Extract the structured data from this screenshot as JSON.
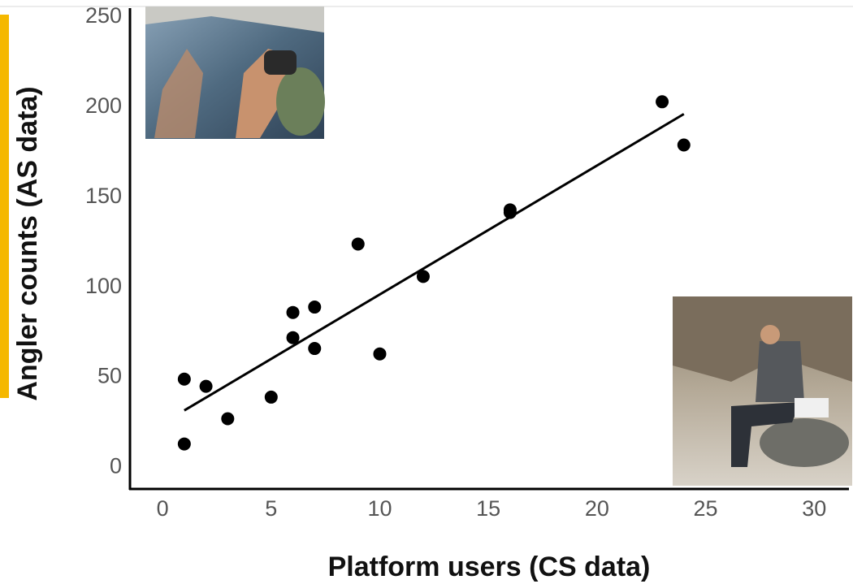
{
  "chart_data": {
    "type": "scatter",
    "xlabel": "Platform users (CS data)",
    "ylabel": "Angler counts (AS data)",
    "x": [
      1,
      1,
      2,
      3,
      5,
      6,
      6,
      7,
      7,
      9,
      10,
      12,
      16,
      16,
      23,
      24
    ],
    "series": [
      {
        "color": "#000000",
        "values": [
          13,
          49,
          45,
          27,
          39,
          86,
          72,
          89,
          66,
          124,
          63,
          106,
          143,
          141.5,
          203,
          179
        ]
      }
    ],
    "fit_line": {
      "x": [
        1,
        24
      ],
      "values": [
        31.6,
        196.2
      ],
      "color": "#000000"
    },
    "xlim": [
      -1.5,
      31.6
    ],
    "ylim": [
      -12,
      255
    ],
    "xticks": [
      0,
      5,
      10,
      15,
      20,
      25,
      30
    ],
    "yticks": [
      0,
      50,
      100,
      150,
      200,
      250
    ],
    "grid": false
  }
}
